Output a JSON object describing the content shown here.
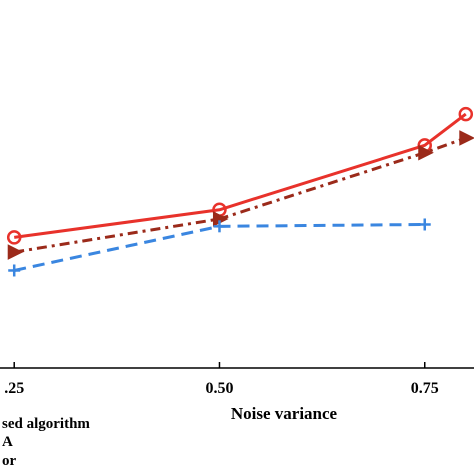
{
  "chart_data": {
    "type": "line",
    "xlabel": "Noise variance",
    "ylabel": "",
    "title": "",
    "x": [
      0.25,
      0.5,
      0.75,
      0.8
    ],
    "x_tick_labels": [
      ".25",
      "0.50",
      "0.75"
    ],
    "x_ticks": [
      0.25,
      0.5,
      0.75
    ],
    "xlim": [
      0.24,
      0.81
    ],
    "ylim": [
      0,
      1
    ],
    "grid": false,
    "legend_placement": "bottom-left",
    "legend_entries": [
      "sed algorithm",
      "A",
      "or"
    ],
    "series": [
      {
        "name": "sed algorithm",
        "color": "#e8322b",
        "style": "solid",
        "marker": "circle",
        "points": [
          [
            0.25,
            0.355
          ],
          [
            0.5,
            0.43
          ],
          [
            0.75,
            0.605
          ],
          [
            0.8,
            0.69
          ]
        ]
      },
      {
        "name": "A",
        "color": "#9b2a1a",
        "style": "dashdot",
        "marker": "triangle-right",
        "points": [
          [
            0.25,
            0.315
          ],
          [
            0.5,
            0.405
          ],
          [
            0.75,
            0.585
          ],
          [
            0.8,
            0.625
          ]
        ]
      },
      {
        "name": "or",
        "color": "#3a86e0",
        "style": "dashed",
        "marker": "plus",
        "points": [
          [
            0.25,
            0.265
          ],
          [
            0.5,
            0.385
          ],
          [
            0.75,
            0.39
          ]
        ]
      }
    ]
  }
}
